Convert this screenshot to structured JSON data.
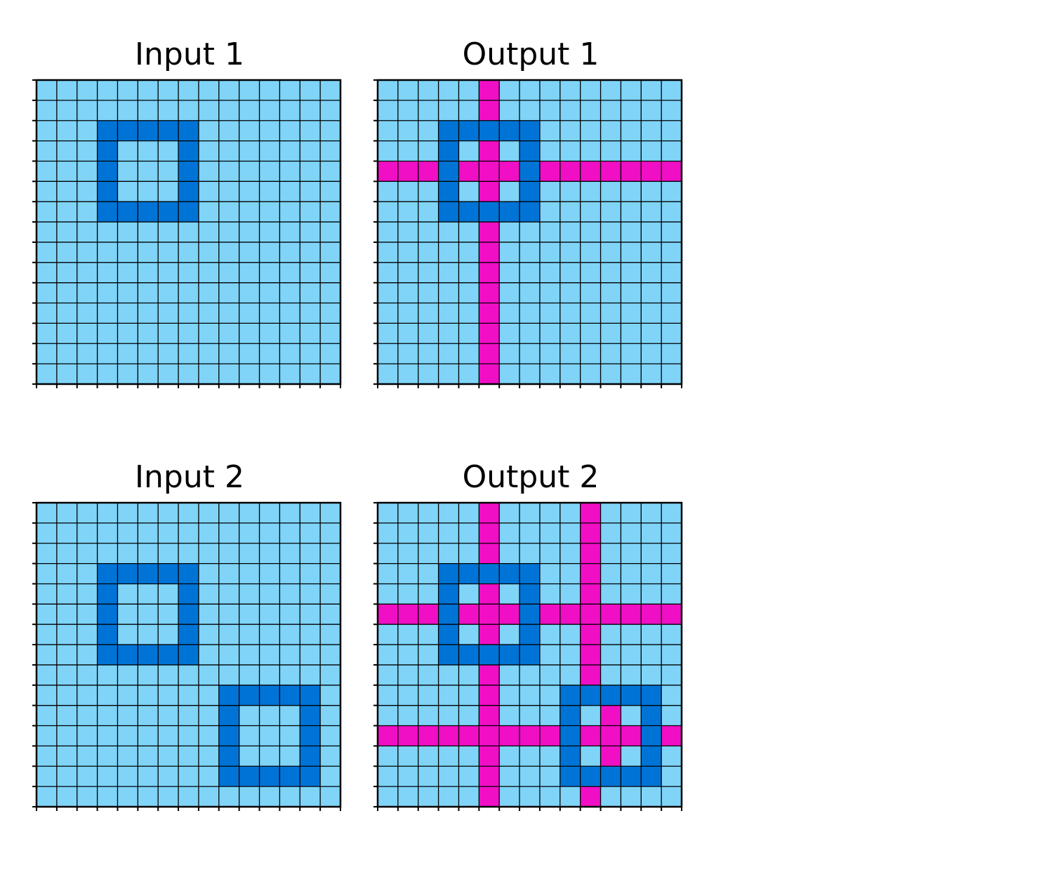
{
  "colors": {
    "background": "#7fd4f8",
    "square": "#0074d6",
    "line": "#f00fc5",
    "gridline": "#000000"
  },
  "panels": [
    {
      "title": "Input 1",
      "grid": [
        "000000000000000",
        "000000000000000",
        "000111110000000",
        "000100010000000",
        "000100010000000",
        "000100010000000",
        "000111110000000",
        "000000000000000",
        "000000000000000",
        "000000000000000",
        "000000000000000",
        "000000000000000",
        "000000000000000",
        "000000000000000",
        "000000000000000"
      ]
    },
    {
      "title": "Output 1",
      "grid": [
        "000002000000000",
        "000002000000000",
        "000111110000000",
        "000102010000000",
        "222122212222222",
        "000102010000000",
        "000111110000000",
        "000002000000000",
        "000002000000000",
        "000002000000000",
        "000002000000000",
        "000002000000000",
        "000002000000000",
        "000002000000000",
        "000002000000000"
      ]
    },
    {
      "title": "Input 2",
      "grid": [
        "000000000000000",
        "000000000000000",
        "000000000000000",
        "000111110000000",
        "000100010000000",
        "000100010000000",
        "000100010000000",
        "000111110000000",
        "000000000000000",
        "000000000111110",
        "000000000100010",
        "000000000100010",
        "000000000100010",
        "000000000111110",
        "000000000000000"
      ]
    },
    {
      "title": "Output 2",
      "grid": [
        "000002000020000",
        "000002000020000",
        "000002000020000",
        "000111110020000",
        "000102010020000",
        "222122212222222",
        "000102010020000",
        "000111110020000",
        "000002000020000",
        "000002000111110",
        "000002000102010",
        "222222222122212",
        "000002000102010",
        "000002000111110",
        "000002000020000"
      ]
    }
  ]
}
